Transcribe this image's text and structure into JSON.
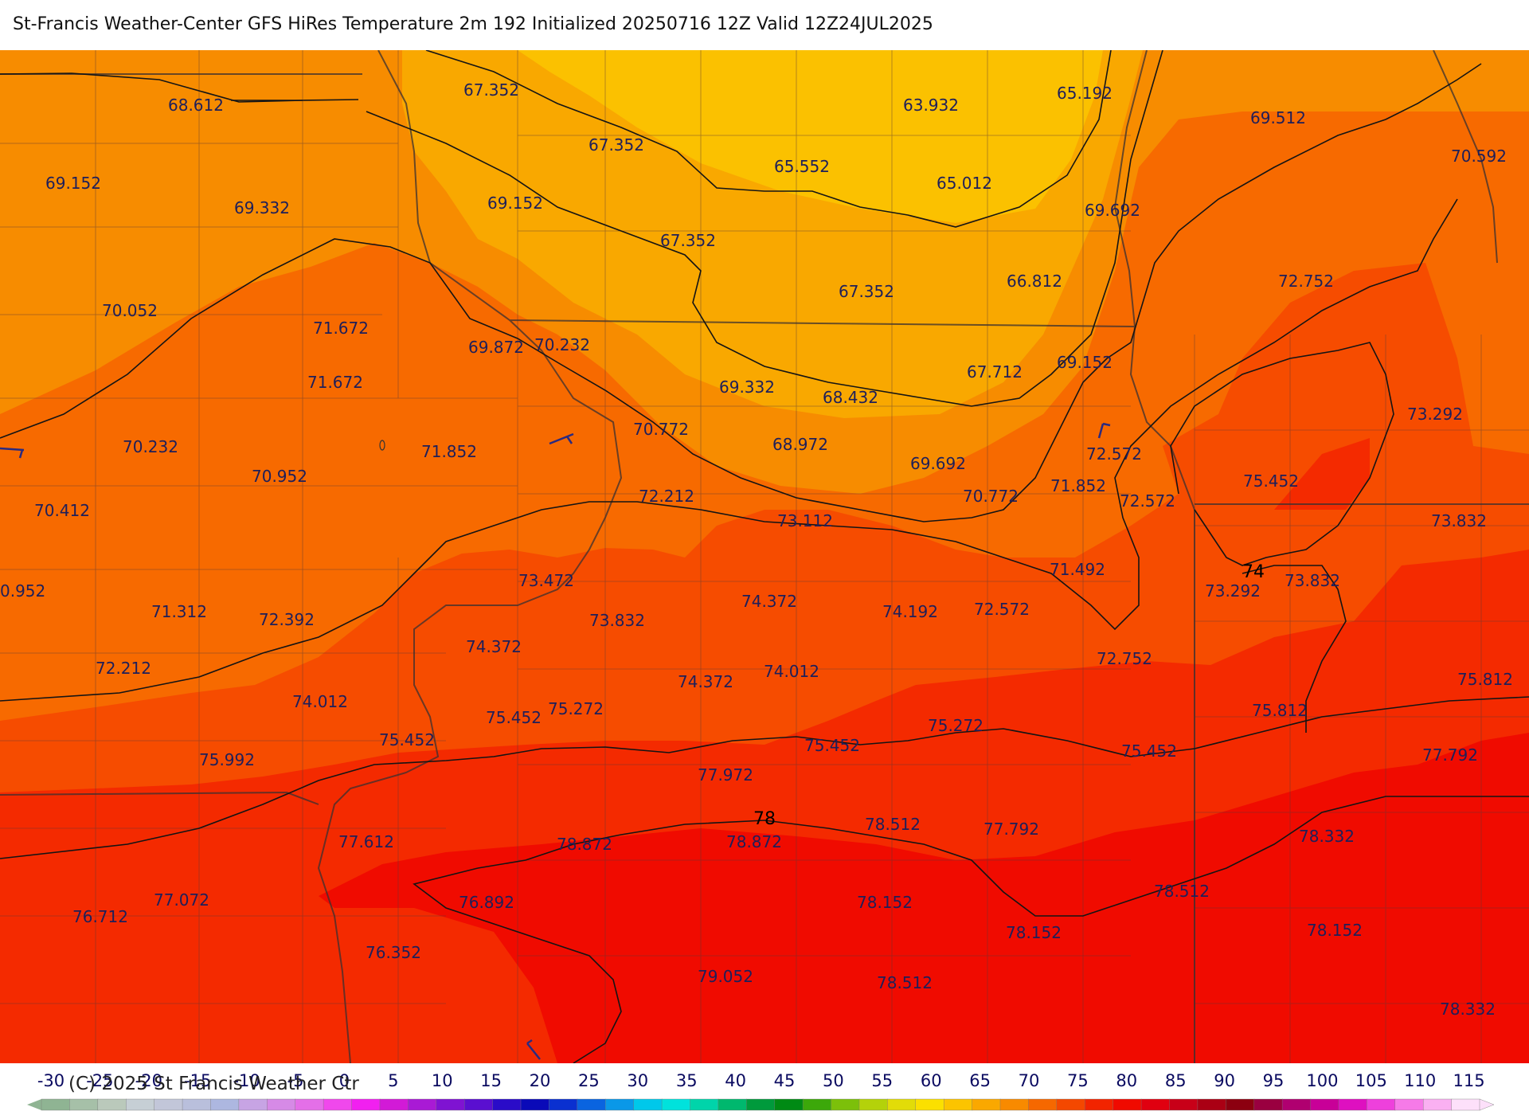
{
  "title": "St-Francis Weather-Center GFS HiRes Temperature 2m  192 Initialized 20250716 12Z Valid 12Z24JUL2025",
  "copyright": "(C) 2025 St Francis Weather Ctr",
  "colors": {
    "band_60": "#fbc100",
    "band_65": "#f9a800",
    "band_70": "#f78c00",
    "band_72": "#f76a00",
    "band_74": "#f64c00",
    "band_76": "#f42a00",
    "band_78": "#f00b00",
    "contour": "#141414",
    "borders": "#4a3b3b"
  },
  "contour_labels": [
    {
      "text": "78"
    },
    {
      "text": "74"
    }
  ],
  "temperature_labels": [
    {
      "text": "68.612"
    },
    {
      "text": "67.352"
    },
    {
      "text": "67.352"
    },
    {
      "text": "63.932"
    },
    {
      "text": "65.192"
    },
    {
      "text": "69.512"
    },
    {
      "text": "70.592"
    },
    {
      "text": "69.152"
    },
    {
      "text": "69.332"
    },
    {
      "text": "69.152"
    },
    {
      "text": "65.552"
    },
    {
      "text": "65.012"
    },
    {
      "text": "69.692"
    },
    {
      "text": "67.352"
    },
    {
      "text": "67.352"
    },
    {
      "text": "66.812"
    },
    {
      "text": "72.752"
    },
    {
      "text": "70.052"
    },
    {
      "text": "71.672"
    },
    {
      "text": "69.872"
    },
    {
      "text": "70.232"
    },
    {
      "text": "67.712"
    },
    {
      "text": "69.152"
    },
    {
      "text": "71.672"
    },
    {
      "text": "69.332"
    },
    {
      "text": "68.432"
    },
    {
      "text": "73.292"
    },
    {
      "text": "70.232"
    },
    {
      "text": "71.852"
    },
    {
      "text": "70.772"
    },
    {
      "text": "68.972"
    },
    {
      "text": "72.572"
    },
    {
      "text": "70.952"
    },
    {
      "text": "69.692"
    },
    {
      "text": "75.452"
    },
    {
      "text": "70.412"
    },
    {
      "text": "72.212"
    },
    {
      "text": "70.772"
    },
    {
      "text": "71.852"
    },
    {
      "text": "72.572"
    },
    {
      "text": "73.112"
    },
    {
      "text": "73.832"
    },
    {
      "text": "0.952"
    },
    {
      "text": "73.472"
    },
    {
      "text": "71.492"
    },
    {
      "text": "73.292"
    },
    {
      "text": "73.832"
    },
    {
      "text": "71.312"
    },
    {
      "text": "72.392"
    },
    {
      "text": "73.832"
    },
    {
      "text": "74.372"
    },
    {
      "text": "74.192"
    },
    {
      "text": "72.572"
    },
    {
      "text": "74.372"
    },
    {
      "text": "72.212"
    },
    {
      "text": "72.752"
    },
    {
      "text": "74.012"
    },
    {
      "text": "74.372"
    },
    {
      "text": "74.012"
    },
    {
      "text": "75.812"
    },
    {
      "text": "75.452"
    },
    {
      "text": "75.272"
    },
    {
      "text": "75.812"
    },
    {
      "text": "75.272"
    },
    {
      "text": "75.452"
    },
    {
      "text": "75.992"
    },
    {
      "text": "75.452"
    },
    {
      "text": "75.452"
    },
    {
      "text": "77.972"
    },
    {
      "text": "77.792"
    },
    {
      "text": "78.512"
    },
    {
      "text": "77.792"
    },
    {
      "text": "77.612"
    },
    {
      "text": "78.872"
    },
    {
      "text": "78.872"
    },
    {
      "text": "78.332"
    },
    {
      "text": "77.072"
    },
    {
      "text": "76.892"
    },
    {
      "text": "78.152"
    },
    {
      "text": "78.512"
    },
    {
      "text": "76.712"
    },
    {
      "text": "78.152"
    },
    {
      "text": "78.152"
    },
    {
      "text": "76.352"
    },
    {
      "text": "79.052"
    },
    {
      "text": "78.512"
    },
    {
      "text": "78.332"
    }
  ],
  "colorbar": {
    "ticks": [
      "-30",
      "-25",
      "-20",
      "-15",
      "-10",
      "-5",
      "0",
      "5",
      "10",
      "15",
      "20",
      "25",
      "30",
      "35",
      "40",
      "45",
      "50",
      "55",
      "60",
      "65",
      "70",
      "75",
      "80",
      "85",
      "90",
      "95",
      "100",
      "105",
      "110",
      "115"
    ],
    "colors": [
      "#8fb493",
      "#a6c0a8",
      "#bac9bb",
      "#c6cfd5",
      "#c2c6d9",
      "#b9bfdc",
      "#adb7e0",
      "#c7a4e4",
      "#d68ae6",
      "#e46fe8",
      "#f048ec",
      "#f120f0",
      "#d21ad7",
      "#a91ad5",
      "#7f13d2",
      "#5a0fd0",
      "#2a0cc8",
      "#0a0ab8",
      "#0a30d0",
      "#0a64e0",
      "#0a98e8",
      "#00c8ea",
      "#00e2dc",
      "#00d4aa",
      "#00b86e",
      "#009a3c",
      "#008a14",
      "#3ca80a",
      "#7cc00a",
      "#b4d20a",
      "#e2dc08",
      "#fbe000",
      "#fcc400",
      "#faa800",
      "#f88a00",
      "#f66800",
      "#f44800",
      "#f22400",
      "#f00a00",
      "#e00010",
      "#c80018",
      "#aa0014",
      "#8c0010",
      "#9a0040",
      "#b00070",
      "#c80098",
      "#de10c0",
      "#ee40dc",
      "#f67ae8",
      "#fab0f2",
      "#fde0fa"
    ]
  }
}
